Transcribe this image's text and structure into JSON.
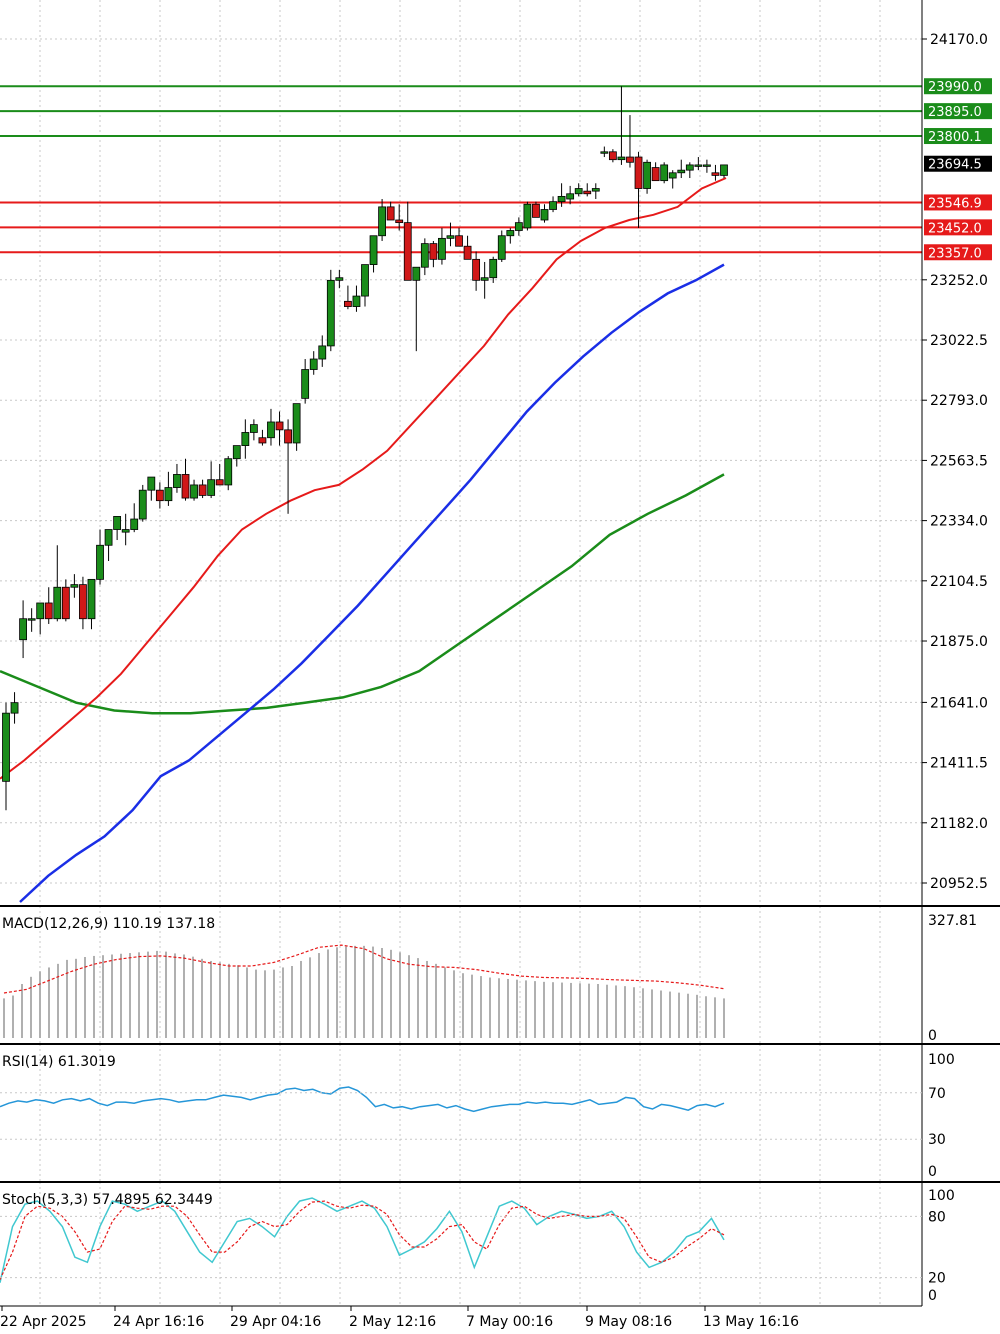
{
  "chart_data": [
    {
      "type": "candlestick",
      "price_ticks": [
        "24170.0",
        "23252.0",
        "23022.5",
        "22793.0",
        "22563.5",
        "22334.0",
        "22104.5",
        "21875.0",
        "21641.0",
        "21411.5",
        "21182.0",
        "20952.5"
      ],
      "ylim": [
        20850,
        24310
      ],
      "current_price": {
        "label": "23694.5",
        "value": 23694.5
      },
      "resistance_levels": [
        {
          "label": "23990.0",
          "value": 23990.0
        },
        {
          "label": "23895.0",
          "value": 23895.0
        },
        {
          "label": "23800.1",
          "value": 23800.1
        }
      ],
      "support_levels": [
        {
          "label": "23546.9",
          "value": 23546.9
        },
        {
          "label": "23452.0",
          "value": 23452.0
        },
        {
          "label": "23357.0",
          "value": 23357.0
        }
      ],
      "candles_ohlc": [
        [
          21340,
          21640,
          21230,
          21600
        ],
        [
          21600,
          21680,
          21560,
          21640
        ],
        [
          21880,
          22030,
          21810,
          21960
        ],
        [
          21960,
          22000,
          21910,
          21960
        ],
        [
          21960,
          22010,
          21900,
          22020
        ],
        [
          22020,
          22080,
          21940,
          21960
        ],
        [
          21960,
          22240,
          21950,
          22080
        ],
        [
          22080,
          22110,
          21950,
          21960
        ],
        [
          22080,
          22130,
          22040,
          22090
        ],
        [
          22090,
          22120,
          21920,
          21960
        ],
        [
          21960,
          22110,
          21920,
          22110
        ],
        [
          22110,
          22300,
          22090,
          22240
        ],
        [
          22240,
          22290,
          22180,
          22300
        ],
        [
          22300,
          22350,
          22260,
          22350
        ],
        [
          22290,
          22360,
          22240,
          22300
        ],
        [
          22300,
          22400,
          22290,
          22340
        ],
        [
          22340,
          22470,
          22330,
          22450
        ],
        [
          22450,
          22490,
          22410,
          22500
        ],
        [
          22450,
          22480,
          22380,
          22410
        ],
        [
          22410,
          22520,
          22390,
          22460
        ],
        [
          22460,
          22550,
          22440,
          22510
        ],
        [
          22510,
          22570,
          22410,
          22420
        ],
        [
          22420,
          22490,
          22410,
          22470
        ],
        [
          22470,
          22490,
          22420,
          22430
        ],
        [
          22430,
          22560,
          22420,
          22490
        ],
        [
          22490,
          22550,
          22470,
          22470
        ],
        [
          22470,
          22580,
          22450,
          22570
        ],
        [
          22570,
          22620,
          22540,
          22620
        ],
        [
          22620,
          22720,
          22570,
          22670
        ],
        [
          22670,
          22720,
          22640,
          22700
        ],
        [
          22650,
          22680,
          22620,
          22630
        ],
        [
          22650,
          22760,
          22620,
          22710
        ],
        [
          22710,
          22750,
          22620,
          22680
        ],
        [
          22680,
          22720,
          22360,
          22630
        ],
        [
          22630,
          22780,
          22600,
          22780
        ],
        [
          22800,
          22950,
          22780,
          22910
        ],
        [
          22910,
          22980,
          22890,
          22950
        ],
        [
          22950,
          23040,
          22920,
          23000
        ],
        [
          23000,
          23290,
          22980,
          23250
        ],
        [
          23250,
          23290,
          23220,
          23260
        ],
        [
          23170,
          23230,
          23140,
          23150
        ],
        [
          23150,
          23230,
          23130,
          23190
        ],
        [
          23190,
          23310,
          23150,
          23310
        ],
        [
          23310,
          23420,
          23280,
          23420
        ],
        [
          23420,
          23560,
          23400,
          23530
        ],
        [
          23530,
          23550,
          23480,
          23480
        ],
        [
          23480,
          23540,
          23440,
          23470
        ],
        [
          23470,
          23550,
          23250,
          23250
        ],
        [
          23250,
          23300,
          22980,
          23300
        ],
        [
          23300,
          23410,
          23270,
          23390
        ],
        [
          23390,
          23400,
          23300,
          23330
        ],
        [
          23330,
          23450,
          23310,
          23410
        ],
        [
          23410,
          23470,
          23380,
          23420
        ],
        [
          23420,
          23450,
          23390,
          23380
        ],
        [
          23380,
          23420,
          23330,
          23330
        ],
        [
          23330,
          23360,
          23210,
          23250
        ],
        [
          23250,
          23320,
          23180,
          23260
        ],
        [
          23260,
          23340,
          23240,
          23330
        ],
        [
          23330,
          23440,
          23320,
          23420
        ],
        [
          23420,
          23450,
          23390,
          23440
        ],
        [
          23440,
          23490,
          23420,
          23470
        ],
        [
          23450,
          23550,
          23440,
          23540
        ],
        [
          23540,
          23550,
          23490,
          23490
        ],
        [
          23480,
          23540,
          23470,
          23520
        ],
        [
          23520,
          23570,
          23510,
          23550
        ],
        [
          23550,
          23620,
          23530,
          23570
        ],
        [
          23560,
          23610,
          23540,
          23580
        ],
        [
          23580,
          23620,
          23570,
          23600
        ],
        [
          23590,
          23620,
          23570,
          23580
        ],
        [
          23590,
          23620,
          23560,
          23600
        ],
        [
          23740,
          23760,
          23720,
          23740
        ],
        [
          23740,
          23750,
          23700,
          23710
        ],
        [
          23710,
          23990,
          23690,
          23720
        ],
        [
          23720,
          23880,
          23680,
          23700
        ],
        [
          23720,
          23740,
          23450,
          23600
        ],
        [
          23600,
          23710,
          23580,
          23700
        ],
        [
          23680,
          23700,
          23630,
          23630
        ],
        [
          23630,
          23700,
          23620,
          23690
        ],
        [
          23640,
          23670,
          23600,
          23660
        ],
        [
          23660,
          23710,
          23640,
          23670
        ],
        [
          23670,
          23700,
          23640,
          23690
        ],
        [
          23690,
          23720,
          23670,
          23690
        ],
        [
          23690,
          23710,
          23660,
          23690
        ],
        [
          23660,
          23690,
          23630,
          23650
        ],
        [
          23650,
          23690,
          23640,
          23690
        ]
      ],
      "ma_red_y": [
        21350,
        21420,
        21500,
        21580,
        21660,
        21750,
        21860,
        21970,
        22080,
        22200,
        22300,
        22360,
        22410,
        22450,
        22470,
        22530,
        22600,
        22700,
        22800,
        22900,
        23000,
        23120,
        23220,
        23330,
        23400,
        23450,
        23480,
        23500,
        23530,
        23600,
        23640
      ],
      "ma_blue_y": [
        20880,
        20980,
        21060,
        21130,
        21230,
        21360,
        21420,
        21510,
        21600,
        21690,
        21790,
        21900,
        22010,
        22130,
        22250,
        22370,
        22490,
        22620,
        22750,
        22860,
        22960,
        23050,
        23130,
        23200,
        23250,
        23310
      ],
      "ma_green_y": [
        21760,
        21700,
        21640,
        21610,
        21600,
        21600,
        21610,
        21620,
        21640,
        21660,
        21700,
        21760,
        21860,
        21960,
        22060,
        22160,
        22280,
        22360,
        22430,
        22510
      ],
      "x_labels": [
        "22 Apr 2025",
        "24 Apr 16:16",
        "29 Apr 04:16",
        "2 May 12:16",
        "7 May 00:16",
        "9 May 08:16",
        "13 May 16:16"
      ]
    },
    {
      "type": "bar",
      "title": "MACD(12,26,9) 110.19 137.18",
      "axis_labels": [
        "327.81",
        "0"
      ],
      "ylim": [
        0,
        327.81
      ],
      "values": [
        110,
        118,
        150,
        170,
        185,
        196,
        206,
        217,
        220,
        225,
        228,
        230,
        232,
        234,
        236,
        238,
        240,
        242,
        240,
        235,
        232,
        226,
        220,
        214,
        210,
        206,
        202,
        196,
        190,
        188,
        190,
        196,
        200,
        214,
        224,
        236,
        246,
        252,
        254,
        256,
        256,
        254,
        250,
        245,
        238,
        230,
        222,
        214,
        206,
        196,
        188,
        180,
        176,
        172,
        168,
        166,
        164,
        162,
        160,
        158,
        156,
        155,
        154,
        153,
        152,
        151,
        150,
        148,
        146,
        144,
        141,
        138,
        135,
        132,
        129,
        126,
        123,
        120,
        116,
        113,
        110
      ],
      "signal": [
        125,
        135,
        160,
        185,
        205,
        218,
        226,
        228,
        222,
        210,
        200,
        200,
        210,
        230,
        252,
        258,
        248,
        220,
        205,
        198,
        196,
        190,
        180,
        172,
        168,
        167,
        165,
        162,
        160,
        158,
        153,
        146,
        137
      ]
    },
    {
      "type": "line",
      "title": "RSI(14) 61.3019",
      "axis_labels": [
        "100",
        "70",
        "30",
        "0"
      ],
      "ylim": [
        0,
        100
      ],
      "values": [
        58,
        61,
        63,
        62,
        64,
        63,
        61,
        64,
        65,
        63,
        65,
        61,
        59,
        62,
        62,
        61,
        63,
        64,
        65,
        64,
        62,
        63,
        64,
        64,
        66,
        68,
        67,
        66,
        64,
        66,
        68,
        69,
        73,
        74,
        72,
        73,
        70,
        69,
        74,
        75,
        72,
        66,
        58,
        60,
        57,
        58,
        56,
        58,
        59,
        60,
        57,
        59,
        56,
        54,
        56,
        58,
        59,
        60,
        60,
        62,
        61,
        62,
        61,
        61,
        60,
        62,
        64,
        60,
        61,
        62,
        66,
        65,
        58,
        56,
        60,
        59,
        57,
        55,
        59,
        60,
        58,
        61
      ]
    },
    {
      "type": "line",
      "title": "Stoch(5,3,3) 57.4895 62.3449",
      "axis_labels": [
        "100",
        "80",
        "20",
        "0"
      ],
      "ylim": [
        0,
        100
      ],
      "k": [
        15,
        70,
        92,
        95,
        85,
        70,
        40,
        35,
        70,
        95,
        92,
        85,
        90,
        95,
        85,
        65,
        45,
        35,
        55,
        75,
        78,
        70,
        60,
        80,
        95,
        98,
        92,
        85,
        90,
        95,
        88,
        70,
        42,
        48,
        55,
        68,
        85,
        65,
        30,
        60,
        90,
        95,
        88,
        72,
        80,
        85,
        82,
        78,
        80,
        85,
        70,
        45,
        30,
        35,
        45,
        60,
        65,
        78,
        57
      ],
      "d": [
        18,
        45,
        80,
        90,
        88,
        80,
        65,
        45,
        48,
        75,
        90,
        88,
        87,
        90,
        90,
        80,
        62,
        45,
        45,
        55,
        70,
        75,
        70,
        72,
        85,
        94,
        95,
        90,
        88,
        91,
        90,
        82,
        62,
        50,
        50,
        58,
        70,
        72,
        55,
        48,
        72,
        88,
        90,
        82,
        78,
        80,
        82,
        80,
        80,
        82,
        78,
        60,
        40,
        35,
        40,
        50,
        58,
        68,
        62
      ]
    }
  ]
}
